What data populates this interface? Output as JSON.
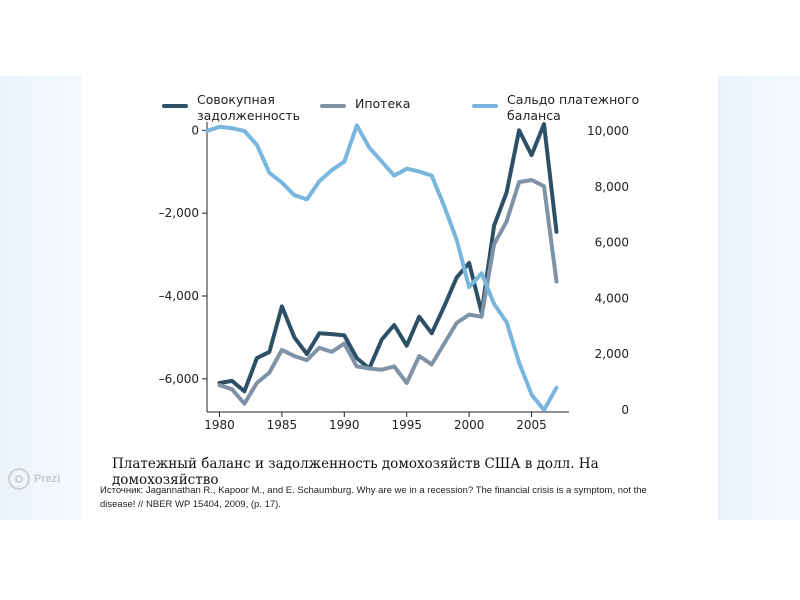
{
  "slide": {
    "caption": "Платежный баланс и задолженность домохозяйств США в долл. На домохозяйство",
    "source_line1": "Источник: Jagannathan R., Kapoor M., and E. Schaumburg. Why are we in a recession? The financial crisis is a symptom, not the",
    "source_line2": "disease! // NBER WP 15404, 2009, (p. 17).",
    "watermark": "Prezi"
  },
  "colors": {
    "total_debt": "#2e5066",
    "mortgage": "#7f93a6",
    "current_account": "#78b6de",
    "axis": "#222222"
  },
  "chart_data": {
    "type": "line",
    "x_ticks": [
      1980,
      1985,
      1990,
      1995,
      2000,
      2005
    ],
    "x_tick_labels": [
      "1980",
      "1985",
      "1990",
      "1995",
      "2000",
      "2005"
    ],
    "xlim": [
      1979,
      2008
    ],
    "ylim_left": [
      -6800,
      200
    ],
    "ylim_right": [
      0,
      10000
    ],
    "y_left_ticks": [
      0,
      -2000,
      -4000,
      -6000
    ],
    "y_left_tick_labels": [
      "0",
      "–2,000",
      "–4,000",
      "–6,000"
    ],
    "y_right_ticks": [
      10000,
      8000,
      6000,
      4000,
      2000,
      0
    ],
    "y_right_tick_labels": [
      "10,000",
      "8,000",
      "6,000",
      "4,000",
      "2,000",
      "0"
    ],
    "legend": [
      {
        "label_line1": "Совокупная",
        "label_line2": "задолженность",
        "series": "total_debt"
      },
      {
        "label_line1": "Ипотека",
        "label_line2": "",
        "series": "mortgage"
      },
      {
        "label_line1": "Сальдо платежного",
        "label_line2": "баланса",
        "series": "current_account"
      }
    ],
    "series": [
      {
        "name": "Совокупная задолженность",
        "key": "total_debt",
        "axis": "left",
        "x": [
          1980,
          1981,
          1982,
          1983,
          1984,
          1985,
          1986,
          1987,
          1988,
          1989,
          1990,
          1991,
          1992,
          1993,
          1994,
          1995,
          1996,
          1997,
          1998,
          1999,
          2000,
          2001,
          2002,
          2003,
          2004,
          2005,
          2006,
          2007
        ],
        "values": [
          -6100,
          -6050,
          -6300,
          -5500,
          -5350,
          -4250,
          -5000,
          -5400,
          -4900,
          -4920,
          -4950,
          -5500,
          -5750,
          -5050,
          -4700,
          -5200,
          -4500,
          -4900,
          -4250,
          -3550,
          -3200,
          -4400,
          -2300,
          -1500,
          0,
          -600,
          150,
          -2450
        ]
      },
      {
        "name": "Ипотека",
        "key": "mortgage",
        "axis": "left",
        "x": [
          1980,
          1981,
          1982,
          1983,
          1984,
          1985,
          1986,
          1987,
          1988,
          1989,
          1990,
          1991,
          1992,
          1993,
          1994,
          1995,
          1996,
          1997,
          1998,
          1999,
          2000,
          2001,
          2002,
          2003,
          2004,
          2005,
          2006,
          2007
        ],
        "values": [
          -6150,
          -6250,
          -6600,
          -6100,
          -5850,
          -5300,
          -5450,
          -5550,
          -5250,
          -5350,
          -5150,
          -5700,
          -5750,
          -5780,
          -5700,
          -6100,
          -5450,
          -5650,
          -5150,
          -4650,
          -4450,
          -4500,
          -2750,
          -2200,
          -1250,
          -1200,
          -1350,
          -3650
        ]
      },
      {
        "name": "Сальдо платежного баланса",
        "key": "current_account",
        "axis": "right",
        "x": [
          1979,
          1980,
          1981,
          1982,
          1983,
          1984,
          1985,
          1986,
          1987,
          1988,
          1989,
          1990,
          1991,
          1992,
          1993,
          1994,
          1995,
          1996,
          1997,
          1998,
          1999,
          2000,
          2001,
          2002,
          2003,
          2004,
          2005,
          2006,
          2007
        ],
        "values": [
          10000,
          10150,
          10100,
          10000,
          9500,
          8500,
          8150,
          7700,
          7550,
          8200,
          8600,
          8900,
          10200,
          9400,
          8900,
          8400,
          8650,
          8550,
          8400,
          7300,
          6100,
          4400,
          4900,
          3800,
          3150,
          1700,
          550,
          0,
          800
        ]
      }
    ]
  }
}
